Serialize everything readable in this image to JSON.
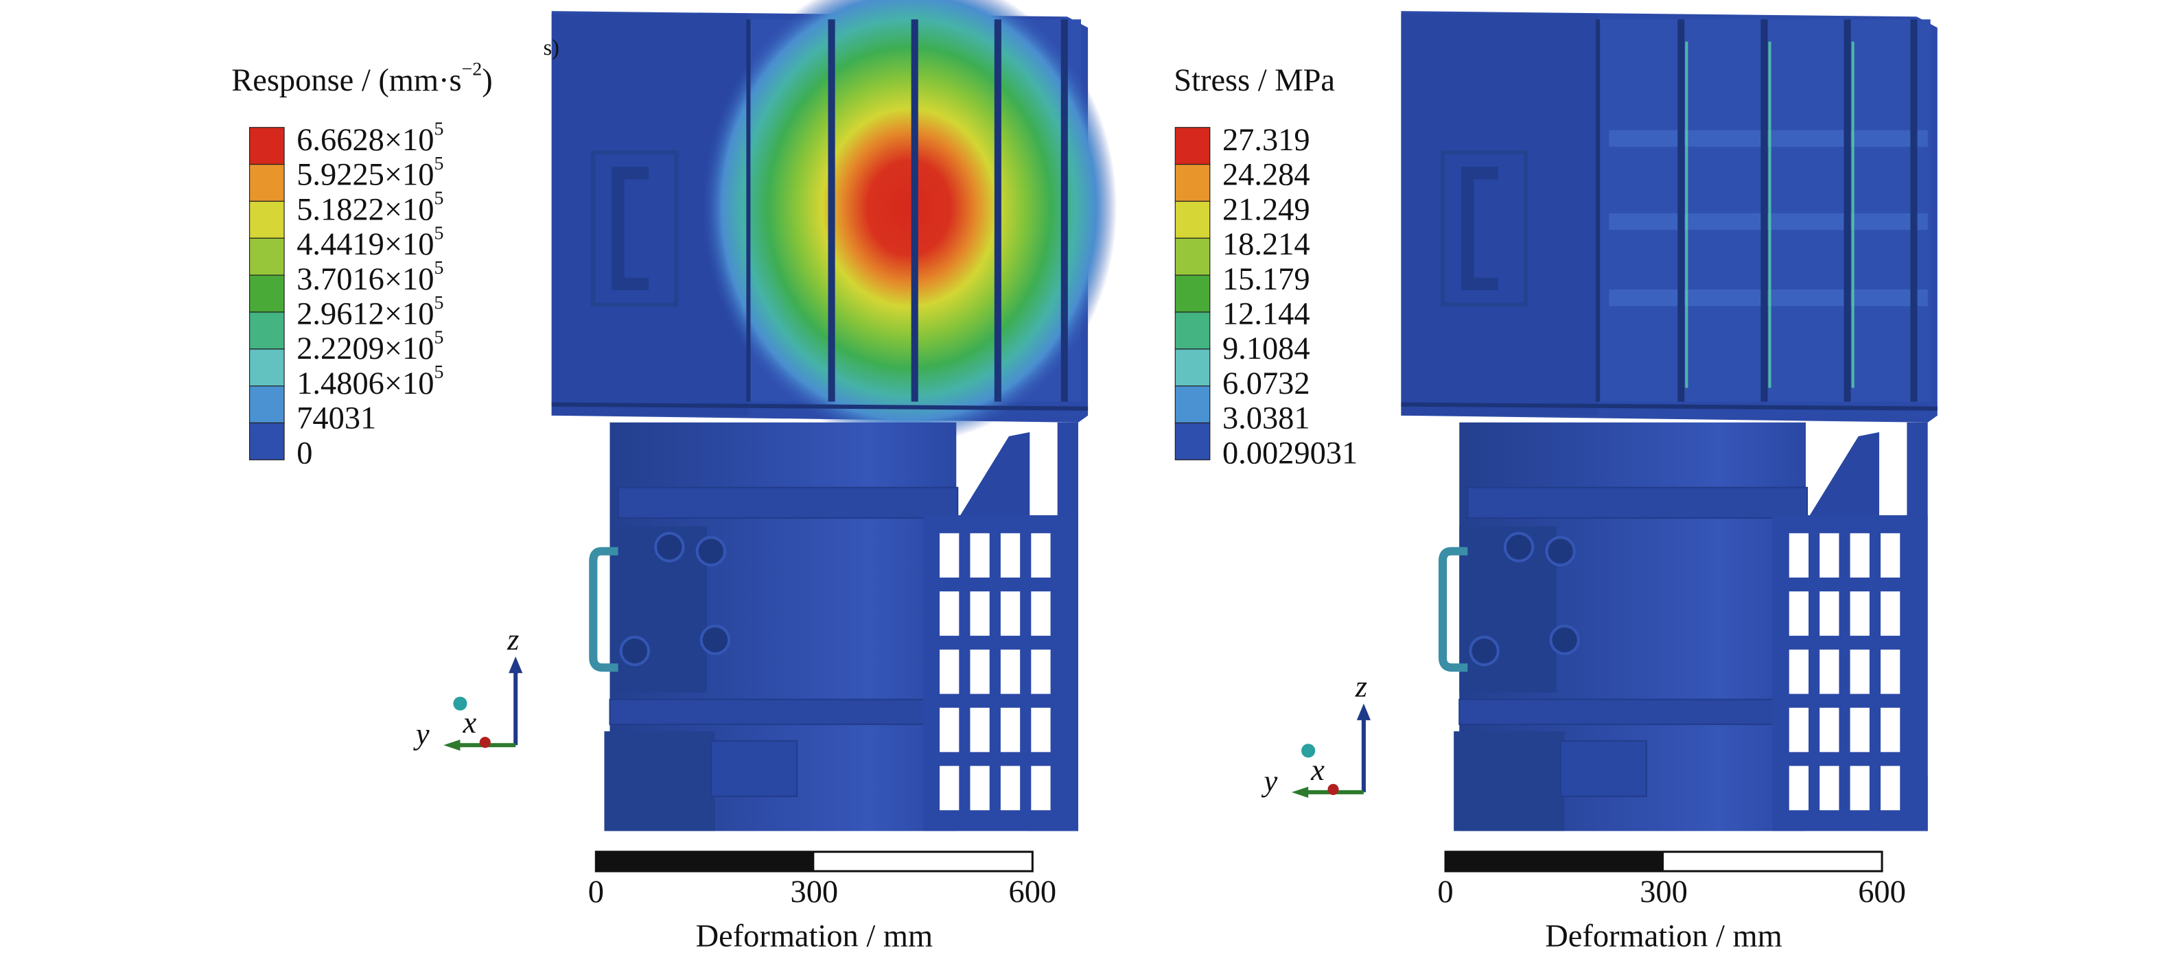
{
  "panels": [
    {
      "panel_label": "s)",
      "legend": {
        "title": {
          "text": "Response / (mm·s",
          "exp": "−2",
          "close": ")"
        },
        "labels": [
          {
            "base": "6.6628×10",
            "exp": "5"
          },
          {
            "base": "5.9225×10",
            "exp": "5"
          },
          {
            "base": "5.1822×10",
            "exp": "5"
          },
          {
            "base": "4.4419×10",
            "exp": "5"
          },
          {
            "base": "3.7016×10",
            "exp": "5"
          },
          {
            "base": "2.9612×10",
            "exp": "5"
          },
          {
            "base": "2.2209×10",
            "exp": "5"
          },
          {
            "base": "1.4806×10",
            "exp": "5"
          },
          {
            "base": "74031"
          },
          {
            "base": "0"
          }
        ],
        "colors": [
          "#d6281c",
          "#e8962c",
          "#d6d636",
          "#98c63a",
          "#4aaa38",
          "#44b482",
          "#62c2c0",
          "#4a92d2",
          "#2f4fae"
        ]
      },
      "triad": {
        "z": "z",
        "x": "x",
        "y": "y"
      },
      "scale": {
        "ticks": [
          0,
          300,
          600
        ],
        "title": "Deformation / mm"
      }
    },
    {
      "legend": {
        "title": {
          "text": "Stress / MPa"
        },
        "labels": [
          {
            "base": "27.319"
          },
          {
            "base": "24.284"
          },
          {
            "base": "21.249"
          },
          {
            "base": "18.214"
          },
          {
            "base": "15.179"
          },
          {
            "base": "12.144"
          },
          {
            "base": "9.1084"
          },
          {
            "base": "6.0732"
          },
          {
            "base": "3.0381"
          },
          {
            "base": "0.0029031"
          }
        ],
        "colors": [
          "#d6281c",
          "#e8962c",
          "#d6d636",
          "#98c63a",
          "#4aaa38",
          "#44b482",
          "#62c2c0",
          "#4a92d2",
          "#2f4fae"
        ]
      },
      "triad": {
        "z": "z",
        "x": "x",
        "y": "y"
      },
      "scale": {
        "ticks": [
          0,
          300,
          600
        ],
        "title": "Deformation / mm"
      }
    }
  ]
}
